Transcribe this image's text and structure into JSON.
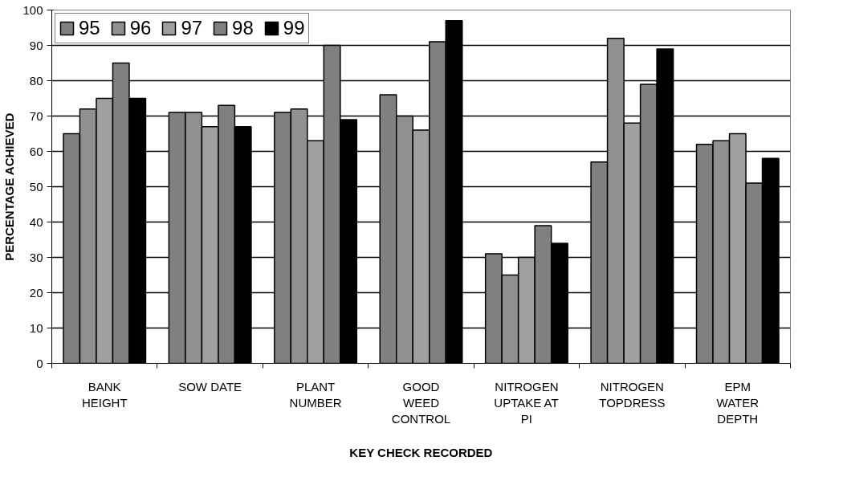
{
  "chart_data": {
    "type": "bar",
    "xlabel": "KEY CHECK RECORDED",
    "ylabel": "PERCENTAGE ACHIEVED",
    "categories": [
      "BANK\nHEIGHT",
      "SOW DATE",
      "PLANT\nNUMBER",
      "GOOD\nWEED\nCONTROL",
      "NITROGEN\nUPTAKE AT\nPI",
      "NITROGEN\nTOPDRESS",
      "EPM\nWATER\nDEPTH"
    ],
    "series": [
      {
        "name": "95",
        "color": "#808080",
        "values": [
          65,
          71,
          71,
          76,
          31,
          57,
          62
        ]
      },
      {
        "name": "96",
        "color": "#909090",
        "values": [
          72,
          71,
          72,
          70,
          25,
          92,
          63
        ]
      },
      {
        "name": "97",
        "color": "#a0a0a0",
        "values": [
          75,
          67,
          63,
          66,
          30,
          68,
          65
        ]
      },
      {
        "name": "98",
        "color": "#808080",
        "values": [
          85,
          73,
          90,
          91,
          39,
          79,
          51
        ]
      },
      {
        "name": "99",
        "color": "#000000",
        "values": [
          75,
          67,
          69,
          97,
          34,
          89,
          58
        ]
      }
    ],
    "ylim": [
      0,
      100
    ],
    "yticks": [
      0,
      10,
      20,
      30,
      40,
      50,
      60,
      70,
      80,
      90,
      100
    ],
    "grid": "y",
    "legend": "top"
  }
}
